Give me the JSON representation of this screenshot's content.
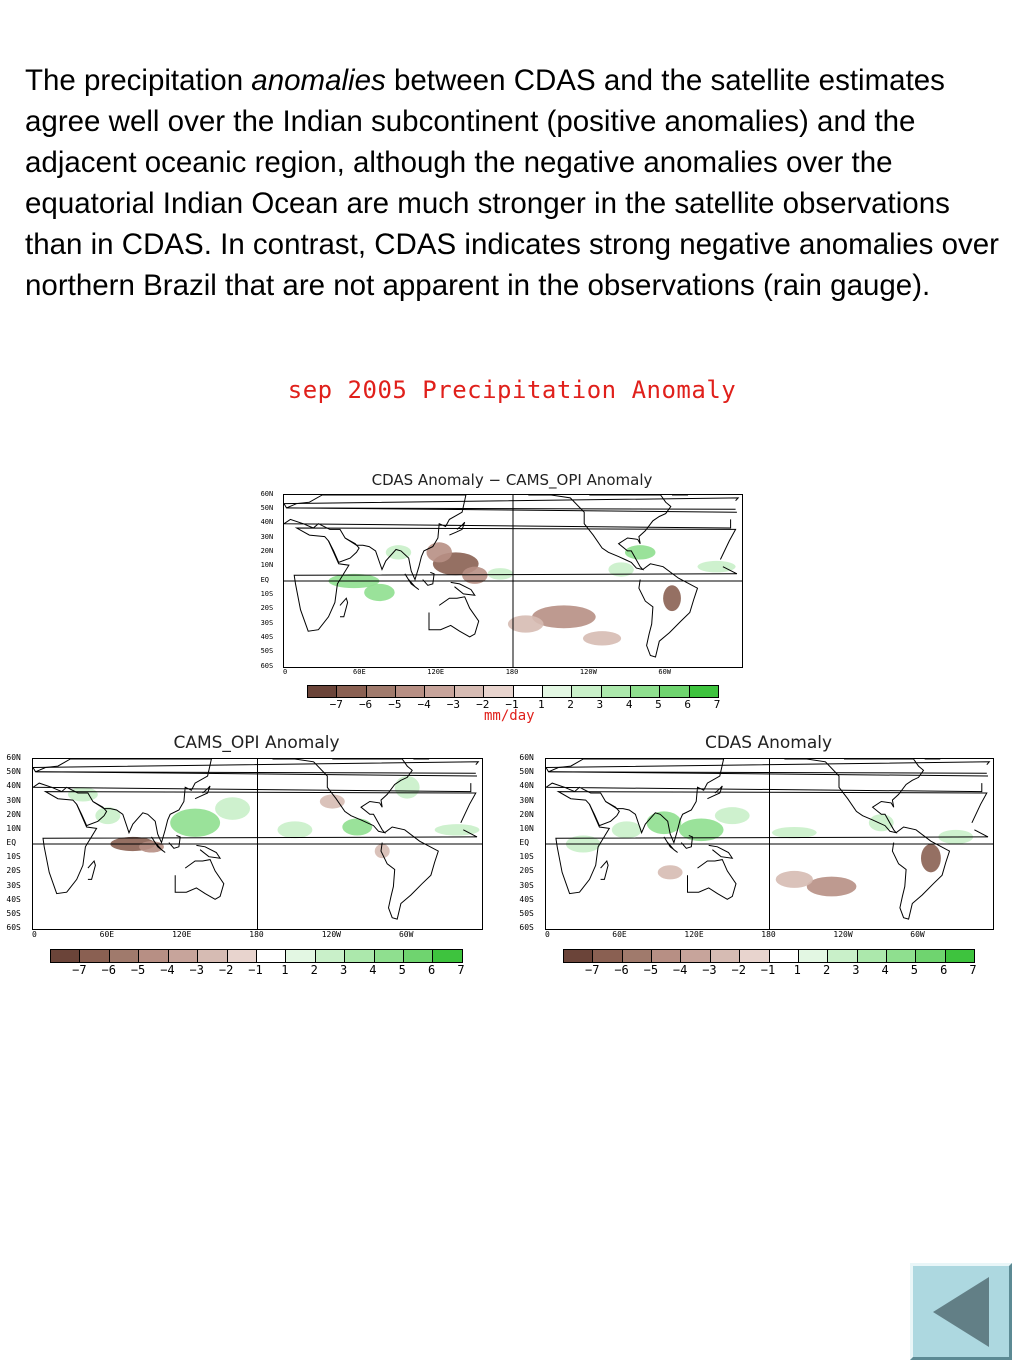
{
  "slide": {
    "paragraph_before": "The precipitation ",
    "paragraph_em": "anomalies",
    "paragraph_after": " between CDAS and the satellite estimates agree well over the Indian subcontinent (positive anomalies) and  the adjacent oceanic region, although the negative anomalies over the equatorial Indian Ocean are much stronger in the satellite observations than in CDAS.  In contrast, CDAS indicates strong negative anomalies over northern Brazil that are not apparent in the observations (rain gauge)."
  },
  "figure": {
    "title": "sep 2005 Precipitation Anomaly",
    "units": "mm/day",
    "lat_labels": [
      "60N",
      "50N",
      "40N",
      "30N",
      "20N",
      "10N",
      "EQ",
      "10S",
      "20S",
      "30S",
      "40S",
      "50S",
      "60S"
    ],
    "lon_labels": [
      "0",
      "60E",
      "120E",
      "180",
      "120W",
      "60W"
    ],
    "colorbar_labels": [
      "−7",
      "−6",
      "−5",
      "−4",
      "−3",
      "−2",
      "−1",
      "1",
      "2",
      "3",
      "4",
      "5",
      "6",
      "7"
    ],
    "colorbar_colors": [
      "#6b4439",
      "#8a6052",
      "#a07a6c",
      "#b78f84",
      "#c7a49b",
      "#d6bbb3",
      "#e8d4ce",
      "#ffffff",
      "#e3f7e3",
      "#c9f0c9",
      "#ace8ac",
      "#8fdf8f",
      "#6fd46f",
      "#3ec33e"
    ],
    "panels": [
      {
        "title": "CDAS Anomaly − CAMS_OPI Anomaly"
      },
      {
        "title": "CAMS_OPI Anomaly"
      },
      {
        "title": "CDAS Anomaly"
      }
    ]
  },
  "colors": {
    "positive": "#8fdf8f",
    "negative": "#b78f84",
    "strong_negative": "#8a6052",
    "land_outline": "#000000",
    "title_red": "#e0201b",
    "nav_button": "#add8e0",
    "nav_arrow": "#627f86"
  },
  "nav": {
    "icon": "back-arrow-icon"
  }
}
